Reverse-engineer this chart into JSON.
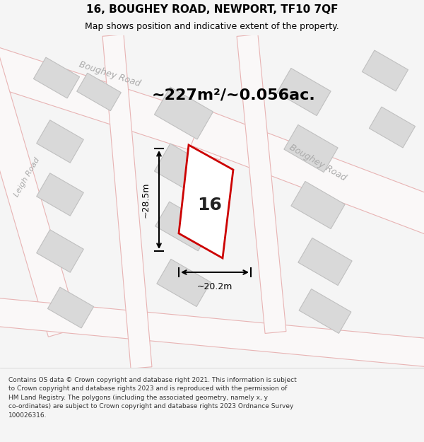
{
  "title": "16, BOUGHEY ROAD, NEWPORT, TF10 7QF",
  "subtitle": "Map shows position and indicative extent of the property.",
  "area_text": "~227m²/~0.056ac.",
  "dim_width": "~20.2m",
  "dim_height": "~28.5m",
  "property_number": "16",
  "footer_text": "Contains OS data © Crown copyright and database right 2021. This information is subject to Crown copyright and database rights 2023 and is reproduced with the permission of HM Land Registry. The polygons (including the associated geometry, namely x, y co-ordinates) are subject to Crown copyright and database rights 2023 Ordnance Survey 100026316.",
  "bg_color": "#f5f5f5",
  "map_bg": "#f0eeec",
  "road_fill": "#ffffff",
  "road_stroke": "#e8b4b4",
  "building_fill": "#d9d9d9",
  "building_stroke": "#c0c0c0",
  "property_fill": "#ffffff",
  "property_stroke": "#cc0000",
  "title_color": "#000000",
  "subtitle_color": "#000000",
  "area_color": "#000000",
  "dim_color": "#000000",
  "road_label_color": "#aaaaaa",
  "footer_color": "#333333"
}
